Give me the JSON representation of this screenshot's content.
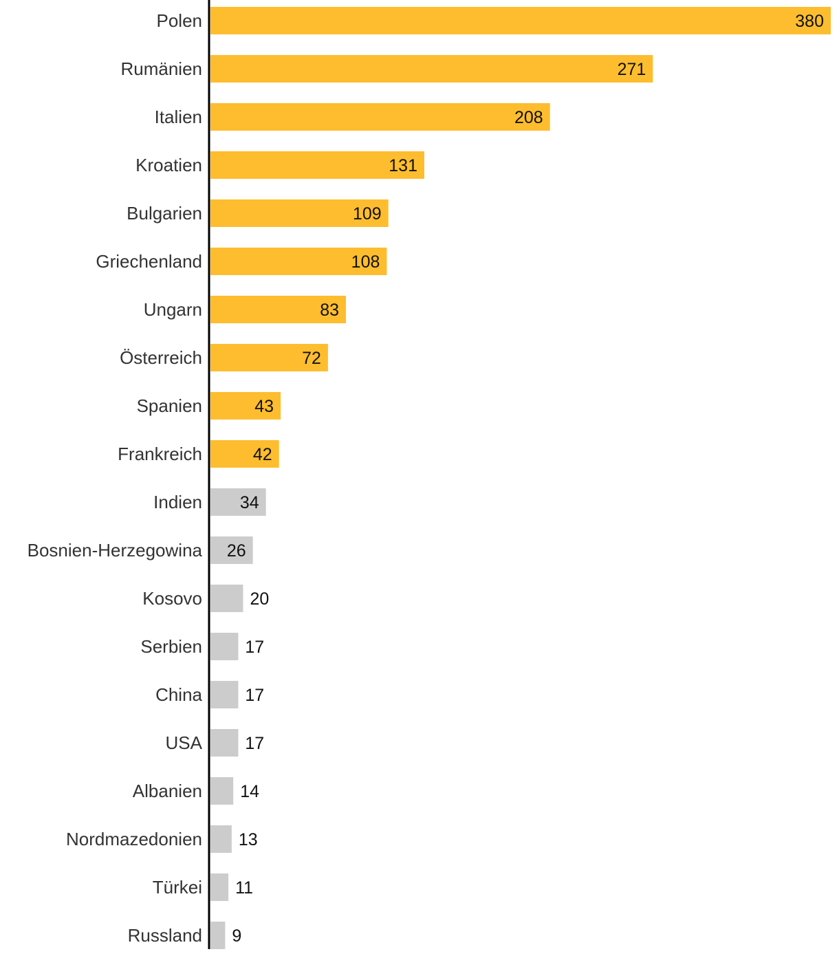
{
  "chart_data": {
    "type": "bar",
    "orientation": "horizontal",
    "title": "",
    "xlabel": "",
    "ylabel": "",
    "grid": false,
    "xlim": [
      0,
      380
    ],
    "highlight_color": "#FDBD2E",
    "muted_color": "#CCCCCC",
    "axis_color": "#000000",
    "categories": [
      "Polen",
      "Rumänien",
      "Italien",
      "Kroatien",
      "Bulgarien",
      "Griechenland",
      "Ungarn",
      "Österreich",
      "Spanien",
      "Frankreich",
      "Indien",
      "Bosnien-Herzegowina",
      "Kosovo",
      "Serbien",
      "China",
      "USA",
      "Albanien",
      "Nordmazedonien",
      "Türkei",
      "Russland"
    ],
    "values": [
      380,
      271,
      208,
      131,
      109,
      108,
      83,
      72,
      43,
      42,
      34,
      26,
      20,
      17,
      17,
      17,
      14,
      13,
      11,
      9
    ],
    "highlighted": [
      true,
      true,
      true,
      true,
      true,
      true,
      true,
      true,
      true,
      true,
      false,
      false,
      false,
      false,
      false,
      false,
      false,
      false,
      false,
      false
    ]
  }
}
